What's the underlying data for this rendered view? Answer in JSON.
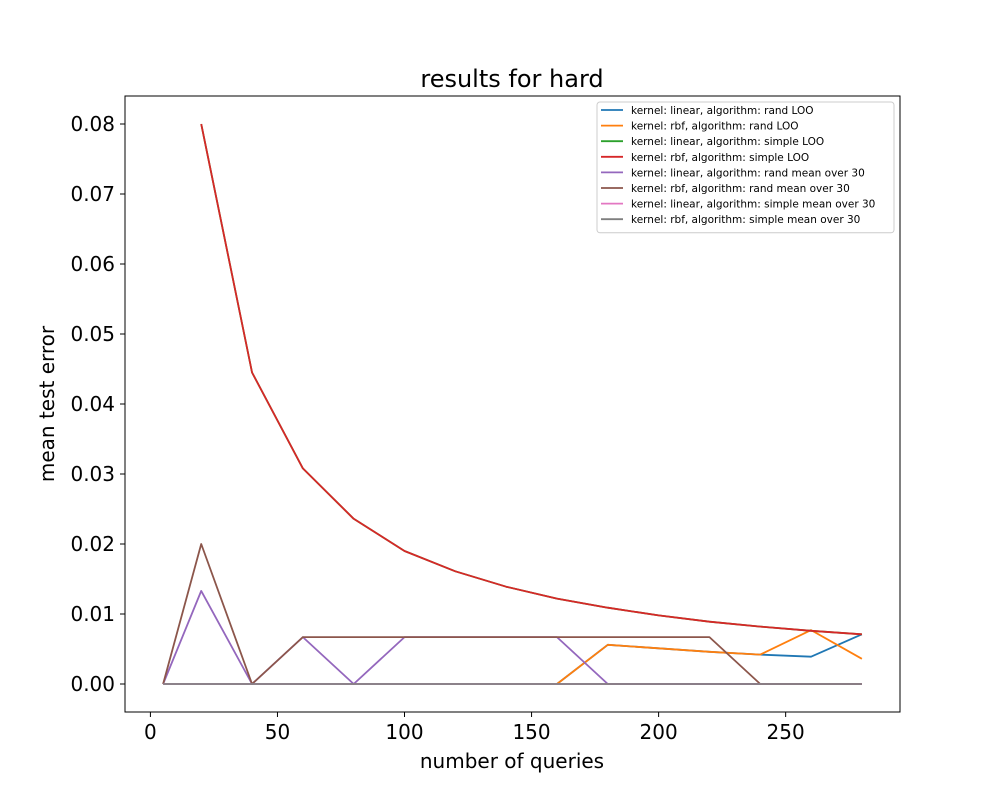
{
  "chart_data": {
    "type": "line",
    "title": "results for hard",
    "xlabel": "number of queries",
    "ylabel": "mean test error",
    "xlim": [
      -10,
      295
    ],
    "ylim": [
      -0.004,
      0.084
    ],
    "xticks": [
      0,
      50,
      100,
      150,
      200,
      250
    ],
    "xtick_labels": [
      "0",
      "50",
      "100",
      "150",
      "200",
      "250"
    ],
    "yticks": [
      0.0,
      0.01,
      0.02,
      0.03,
      0.04,
      0.05,
      0.06,
      0.07,
      0.08
    ],
    "ytick_labels": [
      "0.00",
      "0.01",
      "0.02",
      "0.03",
      "0.04",
      "0.05",
      "0.06",
      "0.07",
      "0.08"
    ],
    "grid": false,
    "legend_position": "top-right",
    "x": [
      5,
      20,
      40,
      60,
      80,
      100,
      120,
      140,
      160,
      180,
      200,
      220,
      240,
      260,
      280
    ],
    "series": [
      {
        "name": "kernel: linear, algorithm: rand LOO",
        "color": "#1f77b4",
        "values": [
          null,
          null,
          null,
          null,
          null,
          null,
          null,
          null,
          0.0,
          0.0056,
          0.0051,
          0.0046,
          0.0042,
          0.0039,
          0.0071
        ]
      },
      {
        "name": "kernel: rbf, algorithm: rand LOO",
        "color": "#ff7f0e",
        "values": [
          null,
          null,
          null,
          null,
          null,
          null,
          null,
          null,
          0.0,
          0.0056,
          0.0051,
          0.0046,
          0.0042,
          0.0077,
          0.0036
        ]
      },
      {
        "name": "kernel: linear, algorithm: simple LOO",
        "color": "#2ca02c",
        "values": [
          null,
          0.08,
          0.0445,
          0.0308,
          0.0236,
          0.019,
          0.0161,
          0.0139,
          0.0122,
          0.0109,
          0.0098,
          0.0089,
          0.0082,
          0.0076,
          0.0071
        ]
      },
      {
        "name": "kernel: rbf, algorithm: simple LOO",
        "color": "#d62728",
        "values": [
          null,
          0.08,
          0.0445,
          0.0308,
          0.0236,
          0.019,
          0.0161,
          0.0139,
          0.0122,
          0.0109,
          0.0098,
          0.0089,
          0.0082,
          0.0076,
          0.0071
        ]
      },
      {
        "name": "kernel: linear, algorithm: rand mean over 30",
        "color": "#9467bd",
        "values": [
          0.0,
          0.0133,
          0.0,
          0.0067,
          0.0,
          0.0067,
          0.0067,
          0.0067,
          0.0067,
          0.0,
          0.0,
          0.0,
          0.0,
          0.0,
          0.0
        ]
      },
      {
        "name": "kernel: rbf, algorithm: rand mean over 30",
        "color": "#8c564b",
        "values": [
          0.0,
          0.02,
          0.0,
          0.0067,
          0.0067,
          0.0067,
          0.0067,
          0.0067,
          0.0067,
          0.0067,
          0.0067,
          0.0067,
          0.0,
          0.0,
          0.0
        ]
      },
      {
        "name": "kernel: linear, algorithm: simple mean over 30",
        "color": "#e377c2",
        "values": [
          0.0,
          0.0,
          0.0,
          0.0,
          0.0,
          0.0,
          0.0,
          0.0,
          0.0,
          0.0,
          0.0,
          0.0,
          0.0,
          0.0,
          0.0
        ]
      },
      {
        "name": "kernel: rbf, algorithm: simple mean over 30",
        "color": "#7f7f7f",
        "values": [
          0.0,
          0.0,
          0.0,
          0.0,
          0.0,
          0.0,
          0.0,
          0.0,
          0.0,
          0.0,
          0.0,
          0.0,
          0.0,
          0.0,
          0.0
        ]
      }
    ]
  }
}
